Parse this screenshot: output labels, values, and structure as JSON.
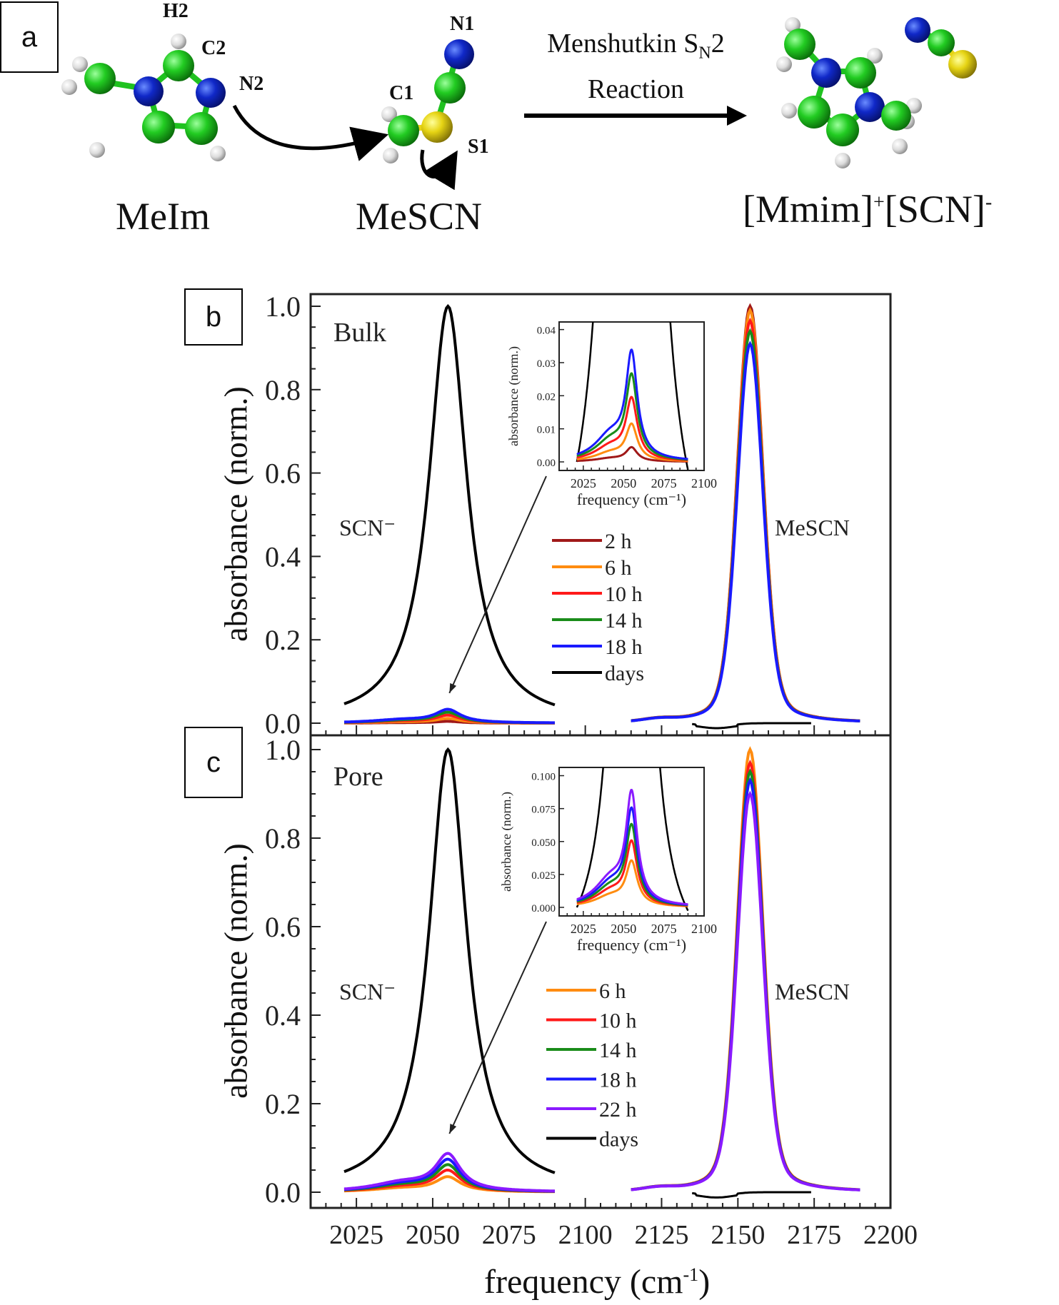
{
  "panels": {
    "a": "a",
    "b": "b",
    "c": "c"
  },
  "scheme": {
    "reactant1": "MeIm",
    "reactant2": "MeSCN",
    "product": "[Mmim]",
    "product_sup1": "+",
    "product_anion": "[SCN]",
    "product_sup2": "-",
    "reaction_line1_pre": "Menshutkin S",
    "reaction_line1_sub": "N",
    "reaction_line1_post": "2",
    "reaction_line2": "Reaction",
    "atom_labels": {
      "h2": "H2",
      "c2": "C2",
      "n2": "N2",
      "c1": "C1",
      "n1": "N1",
      "s1": "S1"
    },
    "colors": {
      "carbon": "#1fc21f",
      "nitrogen": "#1030c0",
      "hydrogen": "#e6e6e6",
      "sulfur": "#e0d010"
    }
  },
  "chart_data": [
    {
      "type": "line",
      "panel": "b",
      "annotation": "Bulk",
      "xlabel": "frequency (cm-1)",
      "ylabel": "absorbance (norm.)",
      "xlim": [
        2010,
        2200
      ],
      "ylim": [
        -0.03,
        1.0
      ],
      "xticks": [
        2025,
        2050,
        2075,
        2100,
        2125,
        2150,
        2175,
        2200
      ],
      "yticks": [
        0.0,
        0.2,
        0.4,
        0.6,
        0.8,
        1.0
      ],
      "ytick_labels": [
        "0.0",
        "0.2",
        "0.4",
        "0.6",
        "0.8",
        "1.0"
      ],
      "peak_labels": [
        "SCN⁻",
        "MeSCN"
      ],
      "series": [
        {
          "name": "2 h",
          "color": "#a01818",
          "scn_peak": 0.005,
          "mescn_peak": 1.0
        },
        {
          "name": "6 h",
          "color": "#ff8c10",
          "scn_peak": 0.013,
          "mescn_peak": 0.99
        },
        {
          "name": "10 h",
          "color": "#ff1a1a",
          "scn_peak": 0.022,
          "mescn_peak": 0.965
        },
        {
          "name": "14 h",
          "color": "#1a8c1a",
          "scn_peak": 0.03,
          "mescn_peak": 0.94
        },
        {
          "name": "18 h",
          "color": "#1a1aff",
          "scn_peak": 0.038,
          "mescn_peak": 0.91
        },
        {
          "name": "days",
          "color": "#000000",
          "scn_peak": 1.0,
          "mescn_peak": 0.0
        }
      ],
      "scn_center": 2055,
      "mescn_center": 2154,
      "legend_position": "center-right",
      "inset": {
        "xlabel": "frequency (cm-1)",
        "ylabel": "absorbance (norm.)",
        "xlim": [
          2010,
          2100
        ],
        "ylim": [
          -0.001,
          0.041
        ],
        "xticks": [
          2025,
          2050,
          2075,
          2100
        ],
        "yticks": [
          0.0,
          0.01,
          0.02,
          0.03,
          0.04
        ],
        "ytick_labels": [
          "0.00",
          "0.01",
          "0.02",
          "0.03",
          "0.04"
        ]
      }
    },
    {
      "type": "line",
      "panel": "c",
      "annotation": "Pore",
      "xlabel": "frequency (cm-1)",
      "ylabel": "absorbance (norm.)",
      "xlim": [
        2010,
        2200
      ],
      "ylim": [
        -0.03,
        1.0
      ],
      "xticks": [
        2025,
        2050,
        2075,
        2100,
        2125,
        2150,
        2175,
        2200
      ],
      "yticks": [
        0.0,
        0.2,
        0.4,
        0.6,
        0.8,
        1.0
      ],
      "ytick_labels": [
        "0.0",
        "0.2",
        "0.4",
        "0.6",
        "0.8",
        "1.0"
      ],
      "peak_labels": [
        "SCN⁻",
        "MeSCN"
      ],
      "series": [
        {
          "name": "6 h",
          "color": "#ff8c10",
          "scn_peak": 0.04,
          "mescn_peak": 1.0
        },
        {
          "name": "10 h",
          "color": "#ff1a1a",
          "scn_peak": 0.057,
          "mescn_peak": 0.97
        },
        {
          "name": "14 h",
          "color": "#1a8c1a",
          "scn_peak": 0.071,
          "mescn_peak": 0.95
        },
        {
          "name": "18 h",
          "color": "#1a1aff",
          "scn_peak": 0.085,
          "mescn_peak": 0.93
        },
        {
          "name": "22 h",
          "color": "#8a1aff",
          "scn_peak": 0.1,
          "mescn_peak": 0.9
        },
        {
          "name": "days",
          "color": "#000000",
          "scn_peak": 1.0,
          "mescn_peak": 0.0
        }
      ],
      "scn_center": 2055,
      "mescn_center": 2154,
      "legend_position": "center-right",
      "inset": {
        "xlabel": "frequency (cm-1)",
        "ylabel": "absorbance (norm.)",
        "xlim": [
          2010,
          2100
        ],
        "ylim": [
          -0.002,
          0.103
        ],
        "xticks": [
          2025,
          2050,
          2075,
          2100
        ],
        "yticks": [
          0.0,
          0.025,
          0.05,
          0.075,
          0.1
        ],
        "ytick_labels": [
          "0.000",
          "0.025",
          "0.050",
          "0.075",
          "0.100"
        ]
      }
    }
  ],
  "xaxis_title_main": "frequency (cm",
  "xaxis_title_sup": "-1",
  "xaxis_title_close": ")",
  "yaxis_title": "absorbance (norm.)"
}
